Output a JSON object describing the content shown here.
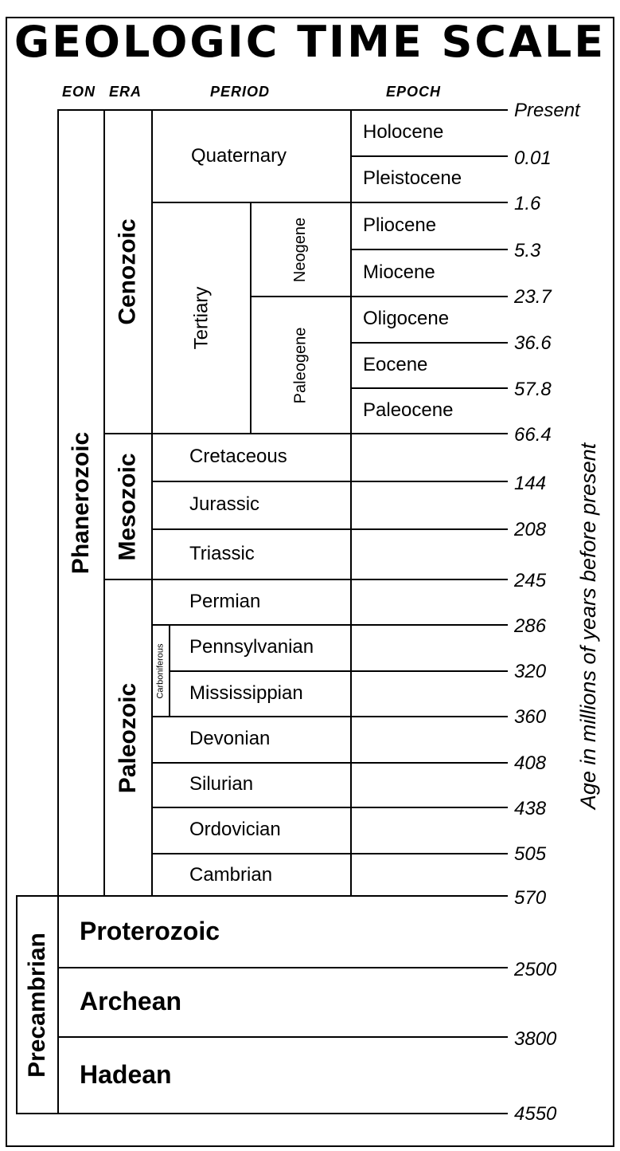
{
  "title": "GEOLOGIC TIME SCALE",
  "columns": {
    "eon": "EON",
    "era": "ERA",
    "period": "PERIOD",
    "epoch": "EPOCH"
  },
  "eons": {
    "phanerozoic": "Phanerozoic",
    "precambrian": "Precambrian"
  },
  "eras": {
    "cenozoic": "Cenozoic",
    "mesozoic": "Mesozoic",
    "paleozoic": "Paleozoic"
  },
  "precambrian_divisions": {
    "proterozoic": "Proterozoic",
    "archean": "Archean",
    "hadean": "Hadean"
  },
  "periods": {
    "quaternary": "Quaternary",
    "tertiary": "Tertiary",
    "neogene": "Neogene",
    "paleogene": "Paleogene",
    "cretaceous": "Cretaceous",
    "jurassic": "Jurassic",
    "triassic": "Triassic",
    "permian": "Permian",
    "carboniferous": "Carboniferous",
    "pennsylvanian": "Pennsylvanian",
    "mississippian": "Mississippian",
    "devonian": "Devonian",
    "silurian": "Silurian",
    "ordovician": "Ordovician",
    "cambrian": "Cambrian"
  },
  "epochs": [
    "Holocene",
    "Pleistocene",
    "Pliocene",
    "Miocene",
    "Oligocene",
    "Eocene",
    "Paleocene"
  ],
  "ages": [
    "Present",
    "0.01",
    "1.6",
    "5.3",
    "23.7",
    "36.6",
    "57.8",
    "66.4",
    "144",
    "208",
    "245",
    "286",
    "320",
    "360",
    "408",
    "438",
    "505",
    "570",
    "2500",
    "3800",
    "4550"
  ],
  "age_axis_label": "Age in millions of years before present"
}
